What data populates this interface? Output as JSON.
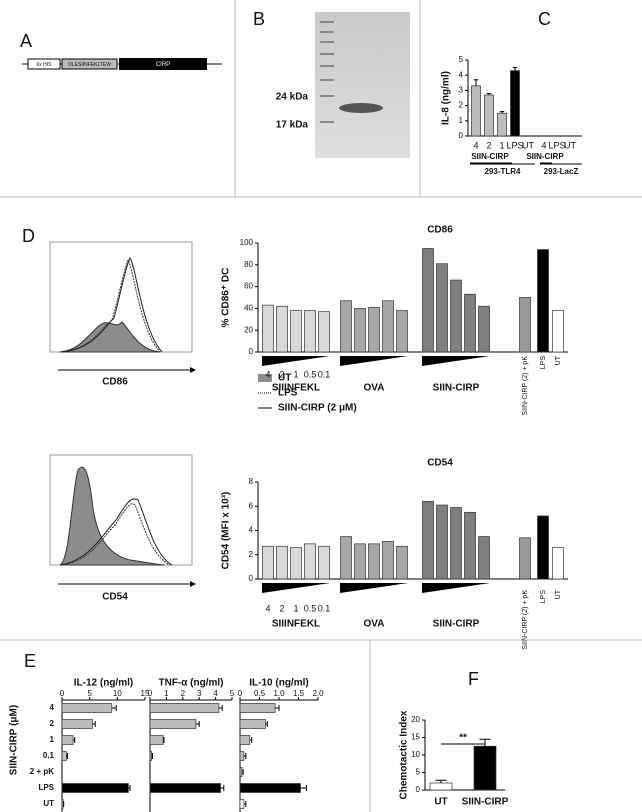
{
  "panels": [
    "A",
    "B",
    "C",
    "D",
    "E",
    "F"
  ],
  "construct": {
    "his": "6x HIS",
    "peptide": "OLESIINFEKLTEW",
    "protein": "CIRP"
  },
  "gel": {
    "markers": [
      "24 kDa",
      "17 kDa"
    ]
  },
  "flow": {
    "markers": [
      "CD86",
      "CD54"
    ],
    "legend": [
      "UT",
      "LPS",
      "SIIN-CIRP (2 μM)"
    ]
  },
  "chart_data": [
    {
      "type": "bar",
      "ylabel": "IL-8 (ng/ml)",
      "categories": [
        "4",
        "2",
        "1",
        "LPS",
        "UT",
        "4",
        "LPS",
        "UT"
      ],
      "values": [
        3.3,
        2.7,
        1.5,
        4.3,
        0,
        0,
        0,
        0
      ],
      "errors": [
        0.4,
        0.1,
        0.1,
        0.2,
        0,
        0,
        0,
        0
      ],
      "colors": [
        "#bdbdbd",
        "#bdbdbd",
        "#bdbdbd",
        "#000000",
        "#ffffff",
        "#bdbdbd",
        "#000000",
        "#ffffff"
      ],
      "group_labels": [
        "SIIN-CIRP",
        "293-TLR4",
        "SIIN-CIRP",
        "293-LacZ"
      ],
      "ylim": [
        0,
        5
      ],
      "yticks": [
        0,
        1,
        2,
        3,
        4,
        5
      ]
    },
    {
      "type": "bar",
      "title": "CD86",
      "ylabel": "% CD86⁺ DC",
      "categories": [
        "4",
        "2",
        "1",
        "0.5",
        "0.1",
        null,
        null,
        null,
        null,
        null,
        null,
        null,
        null,
        null,
        null,
        "SIIN-CIRP (2) + pK",
        "LPS",
        "UT"
      ],
      "values": [
        43,
        42,
        38,
        38,
        37,
        47,
        40,
        41,
        47,
        38,
        95,
        81,
        66,
        53,
        42,
        50,
        94,
        38
      ],
      "colors": [
        "#d9d9d9",
        "#d9d9d9",
        "#d9d9d9",
        "#d9d9d9",
        "#d9d9d9",
        "#a6a6a6",
        "#a6a6a6",
        "#a6a6a6",
        "#a6a6a6",
        "#a6a6a6",
        "#7f7f7f",
        "#7f7f7f",
        "#7f7f7f",
        "#7f7f7f",
        "#7f7f7f",
        "#999999",
        "#000000",
        "#ffffff"
      ],
      "group_labels": [
        "SIIINFEKL",
        "OVA",
        "SIIN-CIRP"
      ],
      "ylim": [
        0,
        100
      ],
      "yticks": [
        0,
        20,
        40,
        60,
        80,
        100
      ]
    },
    {
      "type": "bar",
      "title": "CD54",
      "ylabel": "CD54 (MFI x 10³)",
      "categories": [
        "4",
        "2",
        "1",
        "0.5",
        "0.1",
        null,
        null,
        null,
        null,
        null,
        null,
        null,
        null,
        null,
        null,
        "SIIN-CIRP (2) + pK",
        "LPS",
        "UT"
      ],
      "values": [
        2.7,
        2.7,
        2.6,
        2.9,
        2.7,
        3.5,
        2.9,
        2.9,
        3.1,
        2.7,
        6.4,
        6.1,
        5.9,
        5.5,
        3.5,
        3.4,
        5.2,
        2.6
      ],
      "colors": [
        "#d9d9d9",
        "#d9d9d9",
        "#d9d9d9",
        "#d9d9d9",
        "#d9d9d9",
        "#a6a6a6",
        "#a6a6a6",
        "#a6a6a6",
        "#a6a6a6",
        "#a6a6a6",
        "#7f7f7f",
        "#7f7f7f",
        "#7f7f7f",
        "#7f7f7f",
        "#7f7f7f",
        "#999999",
        "#000000",
        "#ffffff"
      ],
      "group_labels": [
        "SIIINFEKL",
        "OVA",
        "SIIN-CIRP"
      ],
      "ylim": [
        0,
        8
      ],
      "yticks": [
        0,
        2,
        4,
        6,
        8
      ]
    },
    {
      "type": "hbar",
      "title": "IL-12 (ng/ml)",
      "ylabel": "SIIN-CIRP (μM)",
      "categories": [
        "4",
        "2",
        "1",
        "0.1",
        "2 + pK",
        "LPS",
        "UT"
      ],
      "values": [
        9,
        5.5,
        2,
        0.8,
        0,
        12,
        0.2
      ],
      "errors": [
        0.8,
        0.5,
        0.3,
        0.2,
        0,
        0.3,
        0.1
      ],
      "colors": [
        "#bdbdbd",
        "#bdbdbd",
        "#bdbdbd",
        "#bdbdbd",
        "#bdbdbd",
        "#000000",
        "#ffffff"
      ],
      "xlim": [
        0,
        15
      ],
      "xticks": [
        0,
        5,
        10,
        15
      ]
    },
    {
      "type": "hbar",
      "title": "TNF-α (ng/ml)",
      "values": [
        4.2,
        2.8,
        0.8,
        0.1,
        0,
        4.3,
        0
      ],
      "errors": [
        0.2,
        0.2,
        0.05,
        0.05,
        0,
        0.2,
        0
      ],
      "colors": [
        "#bdbdbd",
        "#bdbdbd",
        "#bdbdbd",
        "#bdbdbd",
        "#bdbdbd",
        "#000000",
        "#ffffff"
      ],
      "xlim": [
        0,
        5
      ],
      "xticks": [
        0,
        1,
        2,
        3,
        4,
        5
      ]
    },
    {
      "type": "hbar",
      "title": "IL-10 (ng/ml)",
      "values": [
        0.9,
        0.65,
        0.25,
        0.1,
        0.05,
        1.55,
        0.1
      ],
      "errors": [
        0.1,
        0.05,
        0.05,
        0.05,
        0.03,
        0.15,
        0.05
      ],
      "colors": [
        "#bdbdbd",
        "#bdbdbd",
        "#bdbdbd",
        "#bdbdbd",
        "#bdbdbd",
        "#000000",
        "#ffffff"
      ],
      "xlim": [
        0,
        2
      ],
      "xticks": [
        0,
        0.5,
        {
          "value": 1,
          "label": "1.0"
        },
        1.5,
        {
          "value": 2,
          "label": "2.0"
        }
      ]
    },
    {
      "type": "bar",
      "ylabel": "Chemotactic Index",
      "categories": [
        "UT",
        "SIIN-CIRP"
      ],
      "values": [
        2,
        12.5
      ],
      "errors": [
        0.8,
        2
      ],
      "colors": [
        "#ffffff",
        "#000000"
      ],
      "annotation": "**",
      "ylim": [
        0,
        20
      ],
      "yticks": [
        0,
        5,
        10,
        15,
        20
      ]
    }
  ]
}
